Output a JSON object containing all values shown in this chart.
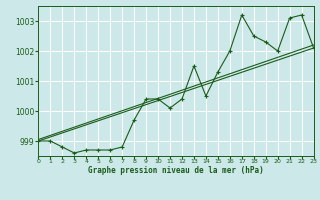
{
  "title": "Graphe pression niveau de la mer (hPa)",
  "bg_color": "#cce8e8",
  "grid_color": "#ffffff",
  "line_color": "#1a5c1a",
  "x_min": 0,
  "x_max": 23,
  "y_min": 998.5,
  "y_max": 1003.5,
  "yticks": [
    999,
    1000,
    1001,
    1002,
    1003
  ],
  "xticks": [
    0,
    1,
    2,
    3,
    4,
    5,
    6,
    7,
    8,
    9,
    10,
    11,
    12,
    13,
    14,
    15,
    16,
    17,
    18,
    19,
    20,
    21,
    22,
    23
  ],
  "series1_x": [
    0,
    1,
    2,
    3,
    4,
    5,
    6,
    7,
    8,
    9,
    10,
    11,
    12,
    13,
    14,
    15,
    16,
    17,
    18,
    19,
    20,
    21,
    22,
    23
  ],
  "series1_y": [
    999.0,
    999.0,
    998.8,
    998.6,
    998.7,
    998.7,
    998.7,
    998.8,
    999.7,
    1000.4,
    1000.4,
    1000.1,
    1000.4,
    1001.5,
    1000.5,
    1001.3,
    1002.0,
    1003.2,
    1002.5,
    1002.3,
    1002.0,
    1003.1,
    1003.2,
    1002.1
  ],
  "trend1_x": [
    0,
    23
  ],
  "trend1_y": [
    999.0,
    1002.1
  ],
  "trend2_x": [
    0,
    23
  ],
  "trend2_y": [
    999.05,
    1002.2
  ]
}
